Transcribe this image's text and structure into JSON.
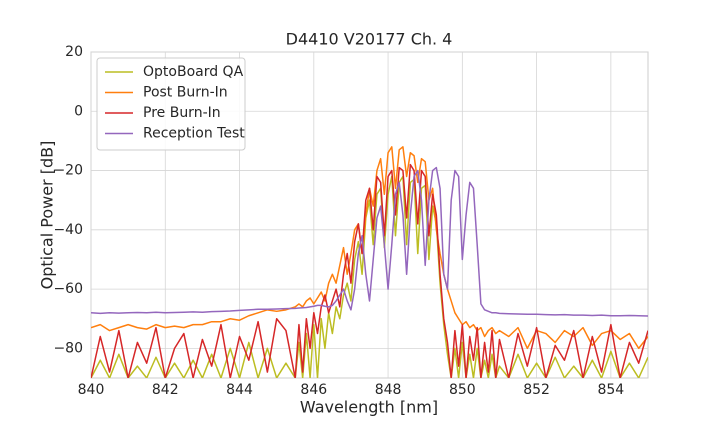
{
  "chart_data": {
    "type": "line",
    "title": "D4410 V20177 Ch. 4",
    "x_label": "Wavelength [nm]",
    "y_label": "Optical Power [dB]",
    "xlim": [
      840,
      855
    ],
    "ylim": [
      -90,
      20
    ],
    "xticks": [
      840,
      842,
      844,
      846,
      848,
      850,
      852,
      854
    ],
    "yticks": [
      20,
      0,
      {
        "value": -20,
        "label": "−20"
      },
      {
        "value": -40,
        "label": "−40"
      },
      {
        "value": -60,
        "label": "−60"
      },
      {
        "value": -80,
        "label": "−80"
      }
    ],
    "grid": true,
    "legend": "upper-left",
    "x": [
      840,
      840.25,
      840.5,
      840.75,
      841,
      841.25,
      841.5,
      841.75,
      842,
      842.25,
      842.5,
      842.75,
      843,
      843.25,
      843.5,
      843.75,
      844,
      844.25,
      844.5,
      844.75,
      845,
      845.25,
      845.5,
      845.6,
      845.7,
      845.8,
      845.9,
      846,
      846.1,
      846.2,
      846.3,
      846.4,
      846.5,
      846.6,
      846.7,
      846.8,
      846.9,
      847,
      847.1,
      847.2,
      847.3,
      847.4,
      847.5,
      847.6,
      847.7,
      847.8,
      847.9,
      848,
      848.1,
      848.2,
      848.3,
      848.4,
      848.5,
      848.6,
      848.7,
      848.8,
      848.9,
      849,
      849.1,
      849.2,
      849.3,
      849.4,
      849.5,
      849.6,
      849.7,
      849.8,
      849.9,
      850,
      850.1,
      850.2,
      850.3,
      850.4,
      850.5,
      850.6,
      850.7,
      850.8,
      850.9,
      851,
      851.25,
      851.5,
      851.75,
      852,
      852.25,
      852.5,
      852.75,
      853,
      853.25,
      853.5,
      853.75,
      854,
      854.25,
      854.5,
      854.75,
      855
    ],
    "series": [
      {
        "name": "OptoBoard QA",
        "color": "#bcbd22",
        "values": [
          -90,
          -84,
          -90,
          -82,
          -90,
          -86,
          -90,
          -83,
          -90,
          -85,
          -90,
          -84,
          -90,
          -82,
          -90,
          -80,
          -90,
          -78,
          -90,
          -80,
          -90,
          -85,
          -90,
          -78,
          -90,
          -75,
          -90,
          -72,
          -90,
          -70,
          -80,
          -68,
          -75,
          -66,
          -70,
          -62,
          -58,
          -64,
          -50,
          -44,
          -55,
          -36,
          -30,
          -45,
          -28,
          -26,
          -46,
          -28,
          -22,
          -42,
          -24,
          -22,
          -45,
          -24,
          -23,
          -48,
          -26,
          -25,
          -50,
          -32,
          -38,
          -58,
          -72,
          -82,
          -90,
          -80,
          -90,
          -78,
          -90,
          -82,
          -90,
          -80,
          -90,
          -84,
          -90,
          -82,
          -90,
          -86,
          -90,
          -82,
          -90,
          -85,
          -90,
          -83,
          -90,
          -86,
          -90,
          -84,
          -90,
          -81,
          -90,
          -85,
          -90,
          -83
        ]
      },
      {
        "name": "Post Burn-In",
        "color": "#ff7f0e",
        "values": [
          -73,
          -72,
          -74,
          -73,
          -72,
          -73,
          -73.5,
          -72,
          -73,
          -72.5,
          -73,
          -72,
          -72,
          -71,
          -71,
          -70,
          -70.5,
          -69,
          -68,
          -67,
          -67.5,
          -67,
          -66,
          -65,
          -66,
          -64,
          -63,
          -65,
          -63,
          -61,
          -64,
          -58,
          -55,
          -58,
          -52,
          -46,
          -55,
          -48,
          -40,
          -38,
          -48,
          -35,
          -26,
          -32,
          -20,
          -16,
          -28,
          -14,
          -12,
          -26,
          -13,
          -12,
          -22,
          -14,
          -15,
          -24,
          -16,
          -17,
          -30,
          -26,
          -40,
          -48,
          -55,
          -60,
          -64,
          -68,
          -70,
          -72,
          -71,
          -73,
          -72,
          -74,
          -73,
          -76,
          -74,
          -73,
          -75,
          -74,
          -76,
          -73,
          -80,
          -74,
          -75,
          -78,
          -74,
          -76,
          -73,
          -79,
          -75,
          -74,
          -77,
          -75,
          -80,
          -76
        ]
      },
      {
        "name": "Pre Burn-In",
        "color": "#d62728",
        "values": [
          -90,
          -76,
          -88,
          -74,
          -90,
          -78,
          -85,
          -73,
          -90,
          -80,
          -75,
          -90,
          -77,
          -86,
          -72,
          -90,
          -76,
          -84,
          -71,
          -88,
          -70,
          -74,
          -90,
          -72,
          -88,
          -70,
          -80,
          -68,
          -75,
          -66,
          -62,
          -68,
          -64,
          -60,
          -66,
          -55,
          -48,
          -58,
          -44,
          -38,
          -48,
          -30,
          -26,
          -40,
          -22,
          -24,
          -42,
          -22,
          -20,
          -35,
          -19,
          -20,
          -36,
          -18,
          -20,
          -38,
          -20,
          -22,
          -42,
          -28,
          -35,
          -55,
          -70,
          -78,
          -90,
          -74,
          -86,
          -72,
          -90,
          -76,
          -84,
          -73,
          -90,
          -78,
          -88,
          -74,
          -90,
          -77,
          -90,
          -75,
          -86,
          -73,
          -90,
          -79,
          -84,
          -74,
          -90,
          -76,
          -88,
          -72,
          -90,
          -78,
          -85,
          -74
        ]
      },
      {
        "name": "Reception Test",
        "color": "#9467bd",
        "values": [
          -68,
          -68.2,
          -68,
          -68.1,
          -68,
          -67.9,
          -68,
          -67.8,
          -68,
          -67.9,
          -67.8,
          -67.7,
          -67.8,
          -67.6,
          -67.5,
          -67.4,
          -67.2,
          -67,
          -66.8,
          -66.8,
          -66.7,
          -66.6,
          -66.5,
          -66.4,
          -66.3,
          -66.2,
          -66,
          -65.8,
          -65.5,
          -65.5,
          -65.8,
          -66,
          -65.5,
          -64,
          -62,
          -60,
          -64,
          -67,
          -60,
          -48,
          -42,
          -55,
          -64,
          -50,
          -36,
          -32,
          -45,
          -60,
          -45,
          -28,
          -24,
          -35,
          -55,
          -35,
          -22,
          -20,
          -30,
          -52,
          -30,
          -20,
          -19,
          -26,
          -55,
          -60,
          -30,
          -20,
          -22,
          -50,
          -35,
          -24,
          -26,
          -45,
          -65,
          -67,
          -67.5,
          -68,
          -68,
          -68.2,
          -68.3,
          -68.4,
          -68.5,
          -68.5,
          -68.6,
          -68.7,
          -68.6,
          -68.8,
          -68.8,
          -68.9,
          -68.8,
          -69,
          -69,
          -68.9,
          -69,
          -69.1
        ]
      }
    ]
  }
}
